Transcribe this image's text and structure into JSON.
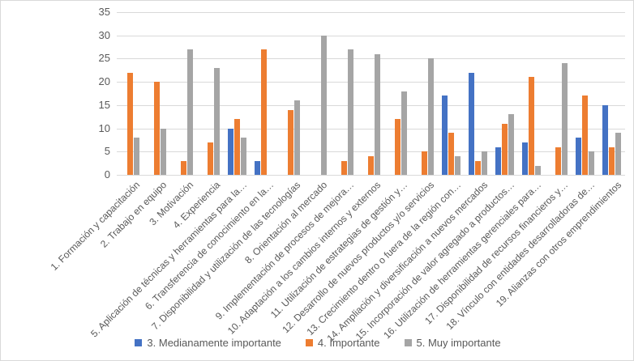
{
  "chart_data": {
    "type": "bar",
    "title": "",
    "xlabel": "",
    "ylabel": "",
    "ylim": [
      0,
      35
    ],
    "ytick_step": 5,
    "grid": true,
    "legend_position": "bottom",
    "categories": [
      "1. Formación y capacitación",
      "2. Trabajo en equipo",
      "3. Motivación",
      "4. Experiencia",
      "5. Aplicación de técnicas y herramientas para la…",
      "6. Transferencia de conocimiento en la…",
      "7. Disponibilidad y utilización de las tecnologías",
      "8. Orientación al mercado",
      "9. Implementación de procesos de mejora…",
      "10. Adaptación a los cambios internos y externos",
      "11. Utilización de estrategias de gestión y…",
      "12. Desarrollo de nuevos productos y/o servicios",
      "13. Crecimiento dentro o fuera de la región con…",
      "14. Ampliación y diversificación a nuevos mercados",
      "15. Incorporación de valor agregado a productos…",
      "16. Utilización de herramientas gerenciales para…",
      "17. Disponibilidad de recursos financieros y…",
      "18. Vínculo con entidades desarrolladoras de…",
      "19. Alianzas con otros emprendimientos"
    ],
    "series": [
      {
        "name": "3. Medianamente importante",
        "color": "#4472C4",
        "values": [
          0,
          0,
          0,
          0,
          10,
          3,
          0,
          0,
          0,
          0,
          0,
          0,
          17,
          22,
          6,
          7,
          0,
          8,
          15
        ]
      },
      {
        "name": "4. Importante",
        "color": "#ED7D31",
        "values": [
          22,
          20,
          3,
          7,
          12,
          27,
          14,
          0,
          3,
          4,
          12,
          5,
          9,
          3,
          11,
          21,
          6,
          17,
          6
        ]
      },
      {
        "name": "5. Muy importante",
        "color": "#A5A5A5",
        "values": [
          8,
          10,
          27,
          23,
          8,
          0,
          16,
          30,
          27,
          26,
          18,
          25,
          4,
          5,
          13,
          2,
          24,
          5,
          9
        ]
      }
    ],
    "ytick_labels": [
      "0",
      "5",
      "10",
      "15",
      "20",
      "25",
      "30",
      "35"
    ]
  }
}
